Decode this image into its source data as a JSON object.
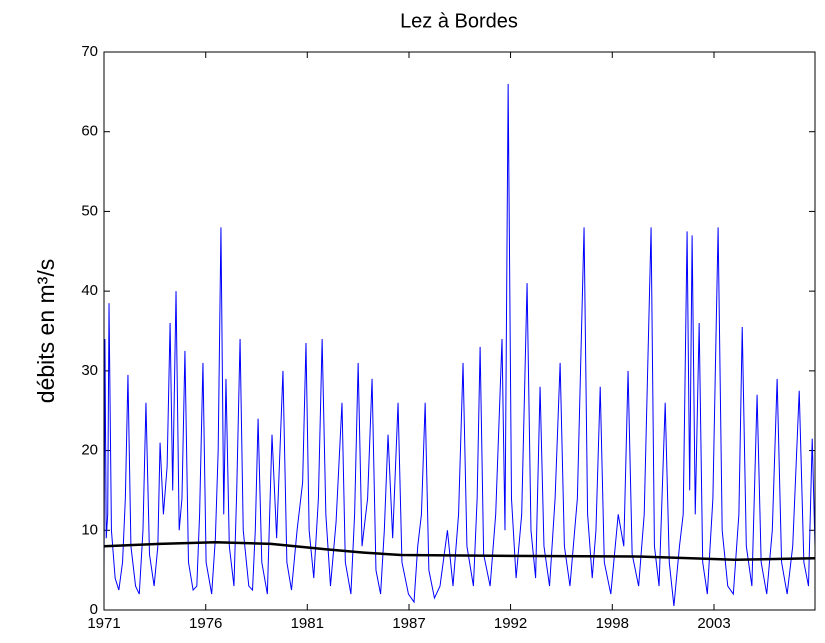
{
  "chart_data": {
    "type": "line",
    "title": "Lez à Bordes",
    "y_label": "débits en m³/s",
    "xlim": [
      1971,
      2009.3
    ],
    "ylim": [
      0,
      70
    ],
    "xticks": [
      {
        "value": 1971.0,
        "label": "1971"
      },
      {
        "value": 1976.48,
        "label": "1976"
      },
      {
        "value": 1981.95,
        "label": "1981"
      },
      {
        "value": 1987.43,
        "label": "1987"
      },
      {
        "value": 1992.9,
        "label": "1992"
      },
      {
        "value": 1998.38,
        "label": "1998"
      },
      {
        "value": 2003.86,
        "label": "2003"
      }
    ],
    "yticks": [
      0,
      10,
      20,
      30,
      40,
      50,
      60,
      70
    ],
    "grid": false,
    "series": [
      {
        "color": "#0000ff",
        "x": [
          1971.0,
          1971.05,
          1971.12,
          1971.2,
          1971.27,
          1971.4,
          1971.6,
          1971.8,
          1972.0,
          1972.15,
          1972.29,
          1972.45,
          1972.7,
          1972.9,
          1973.1,
          1973.26,
          1973.45,
          1973.7,
          1973.9,
          1974.02,
          1974.2,
          1974.4,
          1974.56,
          1974.7,
          1974.88,
          1975.05,
          1975.2,
          1975.36,
          1975.55,
          1975.8,
          1976.0,
          1976.15,
          1976.33,
          1976.5,
          1976.8,
          1977.0,
          1977.15,
          1977.3,
          1977.45,
          1977.57,
          1977.75,
          1978.0,
          1978.15,
          1978.33,
          1978.5,
          1978.8,
          1979.0,
          1979.15,
          1979.3,
          1979.5,
          1979.8,
          1980.05,
          1980.3,
          1980.64,
          1980.85,
          1981.1,
          1981.4,
          1981.7,
          1981.88,
          1982.05,
          1982.3,
          1982.55,
          1982.75,
          1982.95,
          1983.2,
          1983.5,
          1983.82,
          1984.0,
          1984.3,
          1984.5,
          1984.69,
          1984.9,
          1985.2,
          1985.44,
          1985.65,
          1985.9,
          1986.1,
          1986.3,
          1986.55,
          1986.84,
          1987.05,
          1987.4,
          1987.7,
          1987.9,
          1988.1,
          1988.3,
          1988.5,
          1988.8,
          1989.1,
          1989.5,
          1989.8,
          1990.1,
          1990.34,
          1990.55,
          1990.9,
          1991.1,
          1991.26,
          1991.45,
          1991.8,
          1992.1,
          1992.44,
          1992.6,
          1992.77,
          1992.95,
          1993.2,
          1993.5,
          1993.79,
          1994.0,
          1994.25,
          1994.49,
          1994.7,
          1995.0,
          1995.3,
          1995.57,
          1995.8,
          1996.1,
          1996.5,
          1996.86,
          1997.05,
          1997.3,
          1997.5,
          1997.73,
          1997.95,
          1998.3,
          1998.7,
          1999.0,
          1999.23,
          1999.45,
          1999.8,
          2000.1,
          2000.47,
          2000.65,
          2000.9,
          2001.23,
          2001.45,
          2001.7,
          2002.0,
          2002.2,
          2002.41,
          2002.55,
          2002.68,
          2002.85,
          2003.06,
          2003.25,
          2003.5,
          2003.8,
          2004.08,
          2004.3,
          2004.6,
          2004.9,
          2005.2,
          2005.38,
          2005.6,
          2005.9,
          2006.18,
          2006.4,
          2006.7,
          2007.0,
          2007.26,
          2007.5,
          2007.8,
          2008.1,
          2008.45,
          2008.7,
          2008.95,
          2009.15,
          2009.3
        ],
        "values": [
          5,
          34,
          9,
          12,
          38.5,
          10,
          4,
          2.5,
          6,
          14,
          29.5,
          8,
          3,
          2,
          10,
          26,
          7,
          3,
          8,
          21,
          12,
          18,
          36,
          15,
          40,
          10,
          14,
          32.5,
          6,
          2.5,
          3,
          12,
          31,
          6,
          2,
          9,
          20,
          48,
          12,
          29,
          8,
          3,
          15,
          34,
          10,
          3,
          2.5,
          10,
          24,
          6,
          2,
          22,
          9,
          30,
          6,
          2.5,
          10,
          16,
          33.5,
          10,
          4,
          14,
          34,
          12,
          3,
          11,
          26,
          6,
          2,
          12,
          31,
          8,
          14,
          29,
          5,
          2,
          10,
          22,
          9,
          26,
          6,
          2,
          1,
          8,
          12,
          26,
          5,
          1.5,
          3,
          10,
          3,
          12,
          31,
          8,
          3,
          14,
          33,
          7,
          3,
          12,
          34,
          10,
          66,
          14,
          4,
          12,
          41,
          10,
          4,
          28,
          8,
          3,
          14,
          31,
          8,
          3,
          14,
          48,
          12,
          4,
          10,
          28,
          6,
          2,
          12,
          8,
          30,
          7,
          3,
          12,
          48,
          8,
          3,
          26,
          6,
          0.5,
          8,
          12,
          47.5,
          15,
          47,
          12,
          36,
          6,
          2,
          14,
          48,
          10,
          3,
          2,
          12,
          35.5,
          8,
          3,
          27,
          6,
          2,
          10,
          29,
          6,
          2,
          8,
          27.5,
          6,
          3,
          21.5,
          8
        ]
      },
      {
        "color": "#000000",
        "x": [
          1971.0,
          1974.0,
          1977.0,
          1980.0,
          1983.0,
          1985.0,
          1987.0,
          1992.0,
          2000.0,
          2005.0,
          2009.3
        ],
        "values": [
          8.0,
          8.3,
          8.5,
          8.3,
          7.6,
          7.2,
          6.9,
          6.8,
          6.7,
          6.3,
          6.5
        ]
      }
    ]
  }
}
